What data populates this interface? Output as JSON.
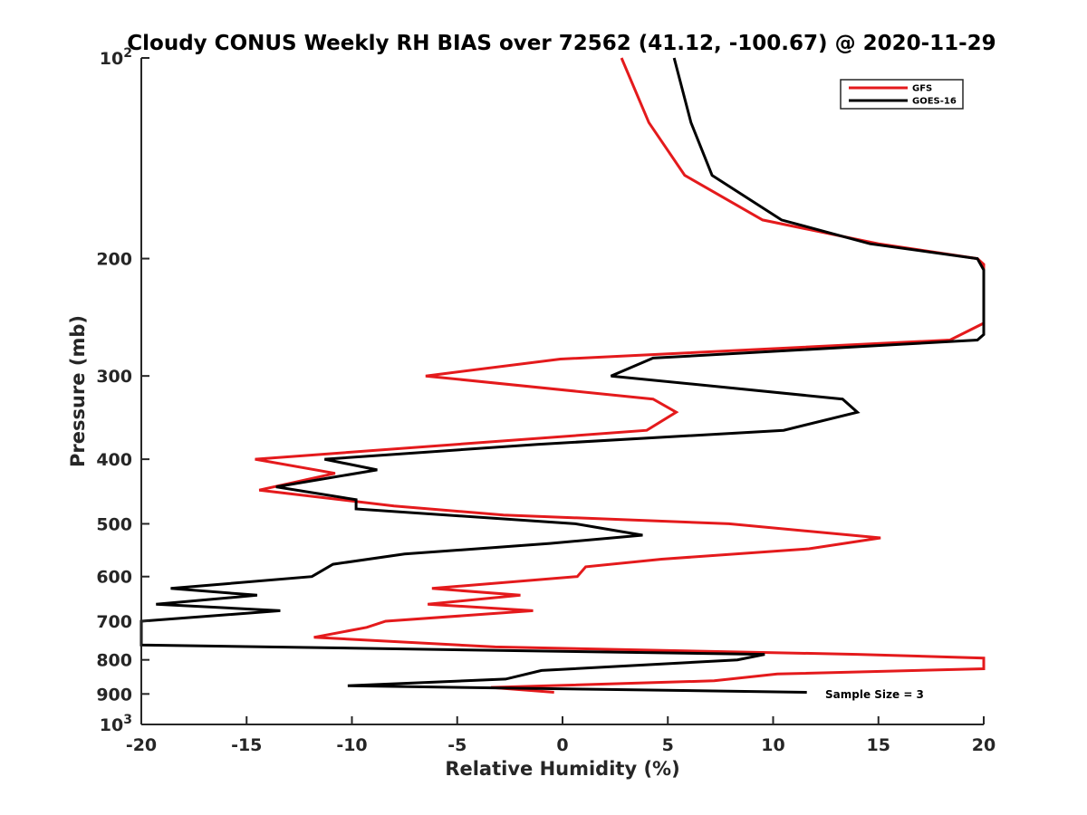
{
  "chart_data": {
    "type": "line",
    "title": "Cloudy CONUS Weekly RH BIAS over 72562 (41.12, -100.67) @ 2020-11-29",
    "xlabel": "Relative Humidity (%)",
    "ylabel": "Pressure (mb)",
    "xlim": [
      -20,
      20
    ],
    "ylim": [
      100,
      1000
    ],
    "y_scale": "log",
    "y_reversed": true,
    "grid": false,
    "legend_position": "top-right",
    "annotation": "Sample Size = 3",
    "x_ticks": [
      "-20",
      "-15",
      "-10",
      "-5",
      "0",
      "5",
      "10",
      "15",
      "20"
    ],
    "y_ticks": [
      {
        "value": 100,
        "base": "10",
        "exp": "2"
      },
      {
        "value": 200,
        "label": "200"
      },
      {
        "value": 300,
        "label": "300"
      },
      {
        "value": 400,
        "label": "400"
      },
      {
        "value": 500,
        "label": "500"
      },
      {
        "value": 600,
        "label": "600"
      },
      {
        "value": 700,
        "label": "700"
      },
      {
        "value": 800,
        "label": "800"
      },
      {
        "value": 900,
        "label": "900"
      },
      {
        "value": 1000,
        "base": "10",
        "exp": "3"
      }
    ],
    "series": [
      {
        "name": "GFS",
        "color": "#e41a1c",
        "points": [
          [
            2.8,
            100
          ],
          [
            4.1,
            125
          ],
          [
            5.8,
            150
          ],
          [
            9.5,
            175
          ],
          [
            15.0,
            190
          ],
          [
            19.7,
            200
          ],
          [
            20.0,
            204
          ],
          [
            20.0,
            250
          ],
          [
            18.4,
            265
          ],
          [
            -0.1,
            283
          ],
          [
            -6.5,
            300
          ],
          [
            4.3,
            325
          ],
          [
            5.4,
            340
          ],
          [
            4.0,
            362
          ],
          [
            -14.6,
            400
          ],
          [
            -10.8,
            420
          ],
          [
            -14.4,
            445
          ],
          [
            -8.0,
            470
          ],
          [
            -2.8,
            485
          ],
          [
            7.9,
            500
          ],
          [
            15.1,
            525
          ],
          [
            11.7,
            545
          ],
          [
            4.7,
            565
          ],
          [
            1.1,
            580
          ],
          [
            0.7,
            600
          ],
          [
            -6.2,
            625
          ],
          [
            -2.0,
            640
          ],
          [
            -6.4,
            660
          ],
          [
            -1.4,
            675
          ],
          [
            -8.4,
            700
          ],
          [
            -9.3,
            715
          ],
          [
            -11.8,
            740
          ],
          [
            -3.2,
            765
          ],
          [
            14.0,
            785
          ],
          [
            20.0,
            795
          ],
          [
            20.0,
            825
          ],
          [
            10.2,
            840
          ],
          [
            7.2,
            860
          ],
          [
            -3.4,
            880
          ],
          [
            -0.4,
            895
          ]
        ]
      },
      {
        "name": "GOES-16",
        "color": "#000000",
        "points": [
          [
            5.3,
            100
          ],
          [
            6.1,
            125
          ],
          [
            7.1,
            150
          ],
          [
            10.4,
            175
          ],
          [
            14.6,
            190
          ],
          [
            19.7,
            200
          ],
          [
            20.0,
            208
          ],
          [
            20.0,
            260
          ],
          [
            19.7,
            265
          ],
          [
            4.3,
            282
          ],
          [
            2.3,
            300
          ],
          [
            13.3,
            325
          ],
          [
            14.0,
            340
          ],
          [
            10.5,
            362
          ],
          [
            -1.2,
            380
          ],
          [
            -11.3,
            400
          ],
          [
            -8.8,
            415
          ],
          [
            -13.6,
            440
          ],
          [
            -9.8,
            460
          ],
          [
            -9.8,
            475
          ],
          [
            0.6,
            500
          ],
          [
            3.8,
            520
          ],
          [
            -0.6,
            535
          ],
          [
            -7.5,
            555
          ],
          [
            -10.9,
            575
          ],
          [
            -11.9,
            600
          ],
          [
            -18.6,
            625
          ],
          [
            -14.5,
            640
          ],
          [
            -19.3,
            660
          ],
          [
            -13.4,
            675
          ],
          [
            -20.0,
            700
          ],
          [
            -20.0,
            760
          ],
          [
            9.6,
            785
          ],
          [
            8.3,
            800
          ],
          [
            -1.0,
            830
          ],
          [
            -2.7,
            855
          ],
          [
            -10.2,
            875
          ],
          [
            11.6,
            895
          ]
        ]
      }
    ]
  }
}
